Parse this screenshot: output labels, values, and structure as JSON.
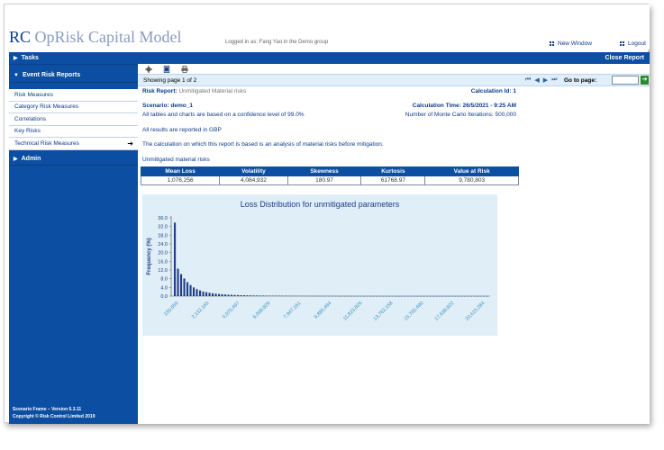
{
  "header": {
    "logo_prefix": "RC",
    "logo_rest": " OpRisk Capital Model",
    "logged_in": "Logged in as: Fang Yao in the Demo group",
    "new_window": "New Window",
    "logout": "Logout"
  },
  "sidebar": {
    "tasks": "Tasks",
    "event_risk_reports": "Event Risk Reports",
    "items": [
      {
        "label": "Risk Measures"
      },
      {
        "label": "Category Risk Measures"
      },
      {
        "label": "Correlations"
      },
      {
        "label": "Key Risks"
      },
      {
        "label": "Technical Risk Measures"
      }
    ],
    "admin": "Admin",
    "footer_version": "Scenario Frame – Version 6.3.11",
    "footer_copyright": "Copyright © Risk Control Limited 2019"
  },
  "main": {
    "close_report": "Close Report",
    "pager": {
      "showing": "Showing page  1  of  2",
      "goto_label": "Go to page:",
      "goto_value": ""
    },
    "report": {
      "risk_report_label": "Risk Report:",
      "risk_report_value": "Unmitigated  Material  risks",
      "calc_id": "Calculation Id: 1",
      "scenario": "Scenario: demo_1",
      "calc_time": "Calculation Time: 26/5/2021 - 9:25 AM",
      "confidence": "All tables and charts are based on a confidence level of 99.0%",
      "iterations": "Number of Monte Carlo Iterations: 500,000",
      "currency": "All results are reported in GBP",
      "basis": "The calculation on which this report is based is an analysis of material risks before mitigation.",
      "section_title": "Unmitigated material risks"
    },
    "stats": {
      "headers": [
        "Mean Loss",
        "Volatility",
        "Skewness",
        "Kurtosis",
        "Value at Risk"
      ],
      "values": [
        "1,076,256",
        "4,084,932",
        "180.97",
        "61768.97",
        "9,780,803"
      ]
    }
  },
  "chart_data": {
    "type": "bar",
    "title": "Loss Distribution for  unmitigated parameters",
    "ylabel": "Frequency (%)",
    "xlabel": "",
    "ylim": [
      0,
      36
    ],
    "yticks": [
      "0.0",
      "4.0",
      "8.0",
      "12.0",
      "16.0",
      "20.0",
      "24.0",
      "28.0",
      "32.0",
      "36.0"
    ],
    "xtick_labels": [
      "193,659",
      "2,132,165",
      "4,070,497",
      "6,008,829",
      "7,947,161",
      "9,885,494",
      "11,823,826",
      "13,762,158",
      "15,700,490",
      "17,638,822",
      "20,615,284"
    ],
    "values": [
      33.8,
      12.6,
      10.1,
      8.1,
      6.4,
      5.1,
      4.0,
      3.2,
      2.6,
      2.1,
      1.8,
      1.5,
      1.3,
      1.1,
      0.95,
      0.85,
      0.75,
      0.65,
      0.58,
      0.52,
      0.47,
      0.42,
      0.38,
      0.35,
      0.32,
      0.29,
      0.27,
      0.25,
      0.23,
      0.21,
      0.2,
      0.19,
      0.18,
      0.17,
      0.16,
      0.15,
      0.14,
      0.13,
      0.12,
      0.12,
      0.11,
      0.1,
      0.1,
      0.09,
      0.09,
      0.08,
      0.08,
      0.08,
      0.07,
      0.07,
      0.07,
      0.06,
      0.06,
      0.06,
      0.06,
      0.05,
      0.05,
      0.05,
      0.05,
      0.05,
      0.04,
      0.04,
      0.04,
      0.04,
      0.04,
      0.04,
      0.04,
      0.03,
      0.03,
      0.03,
      0.03,
      0.03,
      0.03,
      0.03,
      0.03,
      0.03,
      0.03,
      0.02,
      0.02,
      0.02,
      0.02,
      0.02,
      0.02,
      0.02,
      0.02,
      0.02,
      0.02,
      0.02,
      0.02,
      0.02,
      0.02,
      0.02,
      0.02,
      0.02,
      0.02,
      0.02,
      0.02,
      0.02,
      0.02,
      0.02
    ],
    "bar_color": "#1f3e8a",
    "background": "#dfeef7",
    "grid": false
  }
}
